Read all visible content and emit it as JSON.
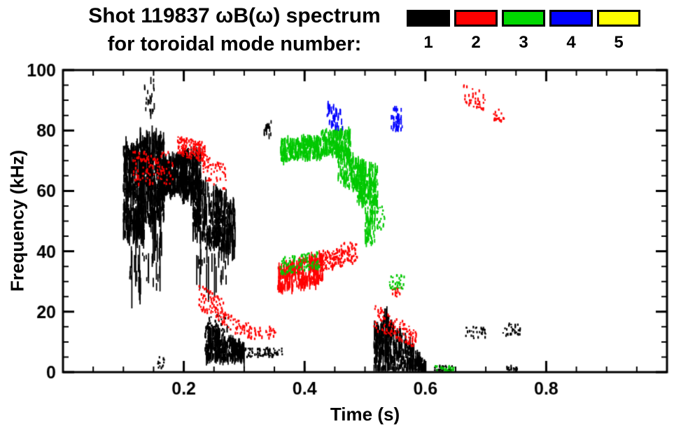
{
  "chart_data": {
    "type": "scatter",
    "title": "Shot 119837 ωB(ω) spectrum",
    "subtitle": "for toroidal mode number:",
    "xlabel": "Time (s)",
    "ylabel": "Frequency (kHz)",
    "xlim": [
      0.0,
      1.0
    ],
    "ylim": [
      0,
      100
    ],
    "xticks": [
      0.2,
      0.4,
      0.6,
      0.8
    ],
    "xminor": 0.05,
    "yticks": [
      0,
      20,
      40,
      60,
      80,
      100
    ],
    "yminor": 5,
    "grid": false,
    "legend_position": "top-right",
    "legend": [
      {
        "label": "1",
        "color": "#000000"
      },
      {
        "label": "2",
        "color": "#ff0000"
      },
      {
        "label": "3",
        "color": "#00d800"
      },
      {
        "label": "4",
        "color": "#0000ff"
      },
      {
        "label": "5",
        "color": "#ffff00"
      }
    ],
    "series": [
      {
        "name": "n=1",
        "color": "#000000",
        "clusters": [
          {
            "t": [
              0.1,
              0.135
            ],
            "f0": [
              45,
              76
            ],
            "n": 400,
            "style": "streak",
            "len": 40
          },
          {
            "t": [
              0.105,
              0.165
            ],
            "f0": [
              28,
              50
            ],
            "n": 70,
            "style": "streak",
            "len": 80
          },
          {
            "t": [
              0.128,
              0.168
            ],
            "f0": [
              50,
              78
            ],
            "n": 400,
            "style": "streak",
            "len": 40
          },
          {
            "t": [
              0.163,
              0.205
            ],
            "f0": [
              57,
              70
            ],
            "f1": [
              61,
              72
            ],
            "n": 320,
            "style": "streak",
            "len": 28
          },
          {
            "t": [
              0.195,
              0.228
            ],
            "f0": [
              57,
              73
            ],
            "n": 260,
            "style": "streak",
            "len": 28
          },
          {
            "t": [
              0.215,
              0.285
            ],
            "f0": [
              46,
              65
            ],
            "f1": [
              38,
              57
            ],
            "n": 380,
            "style": "streak",
            "len": 34
          },
          {
            "t": [
              0.22,
              0.275
            ],
            "f0": [
              30,
              52
            ],
            "n": 40,
            "style": "streak",
            "len": 70
          },
          {
            "t": [
              0.135,
              0.152
            ],
            "f0": [
              85,
              97
            ],
            "n": 22,
            "style": "streak",
            "len": 12
          },
          {
            "t": [
              0.235,
              0.3
            ],
            "f0": [
              4,
              16
            ],
            "f1": [
              4,
              9
            ],
            "n": 360,
            "style": "streak",
            "len": 22
          },
          {
            "t": [
              0.24,
              0.278
            ],
            "f0": [
              13,
              19
            ],
            "n": 45,
            "style": "dot"
          },
          {
            "t": [
              0.3,
              0.365
            ],
            "f0": [
              5,
              8
            ],
            "n": 70,
            "style": "dot"
          },
          {
            "t": [
              0.515,
              0.54
            ],
            "f0": [
              0,
              14
            ],
            "f1": [
              0,
              21
            ],
            "n": 160,
            "style": "streak",
            "len": 26
          },
          {
            "t": [
              0.535,
              0.6
            ],
            "f0": [
              0,
              19
            ],
            "f1": [
              0,
              3
            ],
            "n": 320,
            "style": "streak",
            "len": 20
          },
          {
            "t": [
              0.615,
              0.645
            ],
            "f0": [
              0,
              2
            ],
            "n": 40,
            "style": "dot"
          },
          {
            "t": [
              0.665,
              0.7
            ],
            "f0": [
              11,
              15
            ],
            "n": 30,
            "style": "dot"
          },
          {
            "t": [
              0.728,
              0.757
            ],
            "f0": [
              12,
              16
            ],
            "n": 28,
            "style": "dot"
          },
          {
            "t": [
              0.735,
              0.752
            ],
            "f0": [
              0,
              2
            ],
            "n": 18,
            "style": "dot"
          },
          {
            "t": [
              0.33,
              0.345
            ],
            "f0": [
              78,
              83
            ],
            "n": 18,
            "style": "streak",
            "len": 12
          },
          {
            "t": [
              0.155,
              0.168
            ],
            "f0": [
              1,
              5
            ],
            "n": 14,
            "style": "dot"
          }
        ]
      },
      {
        "name": "n=2",
        "color": "#ff0000",
        "clusters": [
          {
            "t": [
              0.115,
              0.182
            ],
            "f0": [
              62,
              73
            ],
            "n": 110,
            "style": "dot"
          },
          {
            "t": [
              0.19,
              0.235
            ],
            "f0": [
              72,
              78
            ],
            "f1": [
              69,
              76
            ],
            "n": 150,
            "style": "dot"
          },
          {
            "t": [
              0.23,
              0.272
            ],
            "f0": [
              64,
              73
            ],
            "f1": [
              60,
              68
            ],
            "n": 65,
            "style": "dot"
          },
          {
            "t": [
              0.225,
              0.268
            ],
            "f0": [
              21,
              29
            ],
            "f1": [
              16,
              24
            ],
            "n": 85,
            "style": "dot"
          },
          {
            "t": [
              0.263,
              0.312
            ],
            "f0": [
              14,
              20
            ],
            "f1": [
              11,
              16
            ],
            "n": 55,
            "style": "dot"
          },
          {
            "t": [
              0.305,
              0.355
            ],
            "f0": [
              11,
              15
            ],
            "n": 40,
            "style": "dot"
          },
          {
            "t": [
              0.355,
              0.43
            ],
            "f0": [
              27,
              35
            ],
            "f1": [
              29,
              39
            ],
            "n": 320,
            "style": "streak",
            "len": 16
          },
          {
            "t": [
              0.425,
              0.465
            ],
            "f0": [
              33,
              40
            ],
            "f1": [
              35,
              41
            ],
            "n": 110,
            "style": "dot"
          },
          {
            "t": [
              0.46,
              0.487
            ],
            "f0": [
              36,
              43
            ],
            "n": 60,
            "style": "dot"
          },
          {
            "t": [
              0.515,
              0.585
            ],
            "f0": [
              14,
              23
            ],
            "f1": [
              8,
              14
            ],
            "n": 115,
            "style": "dot"
          },
          {
            "t": [
              0.545,
              0.56
            ],
            "f0": [
              25,
              28
            ],
            "n": 16,
            "style": "dot"
          },
          {
            "t": [
              0.663,
              0.7
            ],
            "f0": [
              89,
              96
            ],
            "f1": [
              86,
              92
            ],
            "n": 42,
            "style": "dot"
          },
          {
            "t": [
              0.713,
              0.731
            ],
            "f0": [
              83,
              87
            ],
            "n": 20,
            "style": "dot"
          }
        ]
      },
      {
        "name": "n=3",
        "color": "#00c800",
        "clusters": [
          {
            "t": [
              0.36,
              0.428
            ],
            "f0": [
              70,
              77
            ],
            "f1": [
              71,
              78
            ],
            "n": 290,
            "style": "streak",
            "len": 14
          },
          {
            "t": [
              0.428,
              0.476
            ],
            "f0": [
              72,
              80
            ],
            "n": 230,
            "style": "streak",
            "len": 14
          },
          {
            "t": [
              0.455,
              0.5
            ],
            "f0": [
              63,
              75
            ],
            "f1": [
              58,
              69
            ],
            "n": 220,
            "style": "streak",
            "len": 14
          },
          {
            "t": [
              0.487,
              0.521
            ],
            "f0": [
              56,
              70
            ],
            "f1": [
              55,
              68
            ],
            "n": 200,
            "style": "streak",
            "len": 16
          },
          {
            "t": [
              0.5,
              0.517
            ],
            "f0": [
              42,
              57
            ],
            "n": 65,
            "style": "streak",
            "len": 16
          },
          {
            "t": [
              0.36,
              0.425
            ],
            "f0": [
              32,
              38
            ],
            "f1": [
              34,
              40
            ],
            "n": 105,
            "style": "dot"
          },
          {
            "t": [
              0.519,
              0.533
            ],
            "f0": [
              47,
              55
            ],
            "n": 22,
            "style": "dot"
          },
          {
            "t": [
              0.54,
              0.566
            ],
            "f0": [
              27,
              32
            ],
            "n": 32,
            "style": "dot"
          },
          {
            "t": [
              0.615,
              0.648
            ],
            "f0": [
              0,
              2
            ],
            "n": 28,
            "style": "dot"
          }
        ]
      },
      {
        "name": "n=4",
        "color": "#0000ff",
        "clusters": [
          {
            "t": [
              0.437,
              0.463
            ],
            "f0": [
              82,
              89
            ],
            "f1": [
              80,
              86
            ],
            "n": 50,
            "style": "streak",
            "len": 10
          },
          {
            "t": [
              0.543,
              0.562
            ],
            "f0": [
              80,
              88
            ],
            "n": 42,
            "style": "streak",
            "len": 10
          }
        ]
      },
      {
        "name": "n=5",
        "color": "#ffff00",
        "clusters": []
      }
    ]
  }
}
